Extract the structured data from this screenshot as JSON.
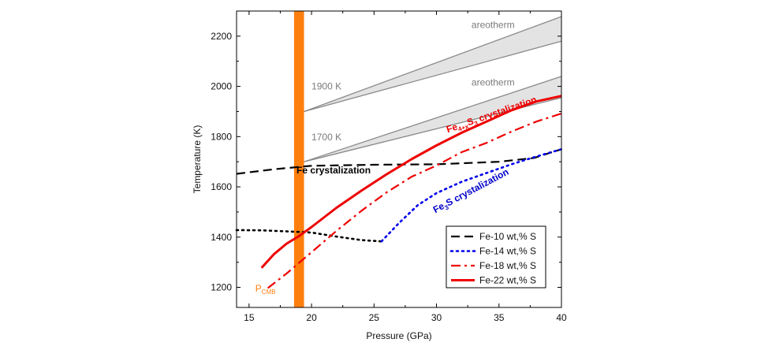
{
  "chart_data": {
    "type": "line",
    "title": "",
    "xlabel": "Pressure (GPa)",
    "ylabel": "Temperature (K)",
    "xlim": [
      14,
      40
    ],
    "ylim": [
      1120,
      2300
    ],
    "x_ticks": [
      15,
      20,
      25,
      30,
      35,
      40
    ],
    "y_ticks": [
      1200,
      1400,
      1600,
      1800,
      2000,
      2200
    ],
    "grid": false,
    "legend_position": "bottom-right",
    "series": [
      {
        "name": "Fe-10 wt,% S",
        "color": "#000000",
        "style": "dash",
        "points": [
          {
            "x": 14.0,
            "y": 1652
          },
          {
            "x": 17.0,
            "y": 1670
          },
          {
            "x": 20.0,
            "y": 1684
          },
          {
            "x": 25.0,
            "y": 1688
          },
          {
            "x": 30.0,
            "y": 1690
          },
          {
            "x": 35.0,
            "y": 1700
          },
          {
            "x": 37.8,
            "y": 1715
          },
          {
            "x": 40.0,
            "y": 1750
          }
        ],
        "extra_points": [
          {
            "x": 14.0,
            "y": 1428
          },
          {
            "x": 16.0,
            "y": 1427
          },
          {
            "x": 18.0,
            "y": 1423
          },
          {
            "x": 20.0,
            "y": 1418
          },
          {
            "x": 22.0,
            "y": 1402
          },
          {
            "x": 24.0,
            "y": 1388
          },
          {
            "x": 25.6,
            "y": 1383
          }
        ]
      },
      {
        "name": "Fe-14 wt,% S",
        "color": "#0000ee",
        "style": "dot",
        "points": [
          {
            "x": 25.6,
            "y": 1383
          },
          {
            "x": 27.0,
            "y": 1456
          },
          {
            "x": 28.5,
            "y": 1527
          },
          {
            "x": 30.0,
            "y": 1575
          },
          {
            "x": 32.0,
            "y": 1620
          },
          {
            "x": 34.0,
            "y": 1655
          },
          {
            "x": 36.0,
            "y": 1690
          },
          {
            "x": 37.8,
            "y": 1718
          },
          {
            "x": 40.0,
            "y": 1750
          }
        ]
      },
      {
        "name": "Fe-18 wt,% S",
        "color": "#ee0000",
        "style": "dashdot",
        "points": [
          {
            "x": 16.5,
            "y": 1197
          },
          {
            "x": 18.0,
            "y": 1255
          },
          {
            "x": 20.0,
            "y": 1340
          },
          {
            "x": 22.0,
            "y": 1425
          },
          {
            "x": 24.0,
            "y": 1505
          },
          {
            "x": 26.0,
            "y": 1578
          },
          {
            "x": 28.0,
            "y": 1640
          },
          {
            "x": 30.0,
            "y": 1685
          },
          {
            "x": 32.0,
            "y": 1738
          },
          {
            "x": 34.0,
            "y": 1775
          },
          {
            "x": 36.0,
            "y": 1820
          },
          {
            "x": 38.0,
            "y": 1860
          },
          {
            "x": 40.0,
            "y": 1892
          }
        ]
      },
      {
        "name": "Fe-22 wt,% S",
        "color": "#ee0000",
        "style": "solid",
        "points": [
          {
            "x": 16.0,
            "y": 1278
          },
          {
            "x": 17.0,
            "y": 1332
          },
          {
            "x": 18.0,
            "y": 1374
          },
          {
            "x": 19.0,
            "y": 1404
          },
          {
            "x": 20.0,
            "y": 1440
          },
          {
            "x": 22.0,
            "y": 1517
          },
          {
            "x": 24.0,
            "y": 1585
          },
          {
            "x": 26.0,
            "y": 1650
          },
          {
            "x": 28.0,
            "y": 1710
          },
          {
            "x": 30.0,
            "y": 1765
          },
          {
            "x": 32.0,
            "y": 1815
          },
          {
            "x": 34.0,
            "y": 1860
          },
          {
            "x": 36.0,
            "y": 1905
          },
          {
            "x": 38.0,
            "y": 1940
          },
          {
            "x": 40.0,
            "y": 1962
          }
        ]
      }
    ],
    "areotherms": [
      {
        "label": "areotherm",
        "from": [
          19.4,
          1900
        ],
        "to_low": [
          40,
          2180
        ],
        "to_high": [
          40,
          2278
        ]
      },
      {
        "label": "areotherm",
        "from": [
          19.4,
          1700
        ],
        "to_low": [
          40,
          1955
        ],
        "to_high": [
          40,
          2040
        ]
      }
    ],
    "cmb_band": {
      "label_main": "P",
      "label_sub": "CMB",
      "x_from": 18.6,
      "x_to": 19.4,
      "color": "#ff7f0e"
    },
    "annotations": [
      {
        "text": "1900 K",
        "x": 20.0,
        "y": 1988,
        "rotate": 0,
        "color": "#7a7a7a",
        "bold": false
      },
      {
        "text": "1700 K",
        "x": 20.0,
        "y": 1785,
        "rotate": 0,
        "color": "#7a7a7a",
        "bold": false
      },
      {
        "text": "areotherm",
        "x": 32.8,
        "y": 2233,
        "rotate": 0,
        "color": "#7a7a7a",
        "bold": false
      },
      {
        "text": "areotherm",
        "x": 32.8,
        "y": 2003,
        "rotate": 0,
        "color": "#7a7a7a",
        "bold": false
      },
      {
        "text": "Fe crystalization",
        "x": 18.8,
        "y": 1653,
        "rotate": 0,
        "color": "#000000",
        "bold": true
      },
      {
        "text": "Fe",
        "sub": "3",
        "rest": "S crystalization",
        "x": 29.9,
        "y": 1495,
        "rotate": -28,
        "color": "#0000cc",
        "bold": true
      },
      {
        "text": "Fe",
        "sub": "4+x",
        "mid": "S",
        "sub2": "3",
        "rest": " crystalization",
        "x": 30.9,
        "y": 1815,
        "rotate": -19,
        "color": "#ee0000",
        "bold": true
      }
    ]
  }
}
